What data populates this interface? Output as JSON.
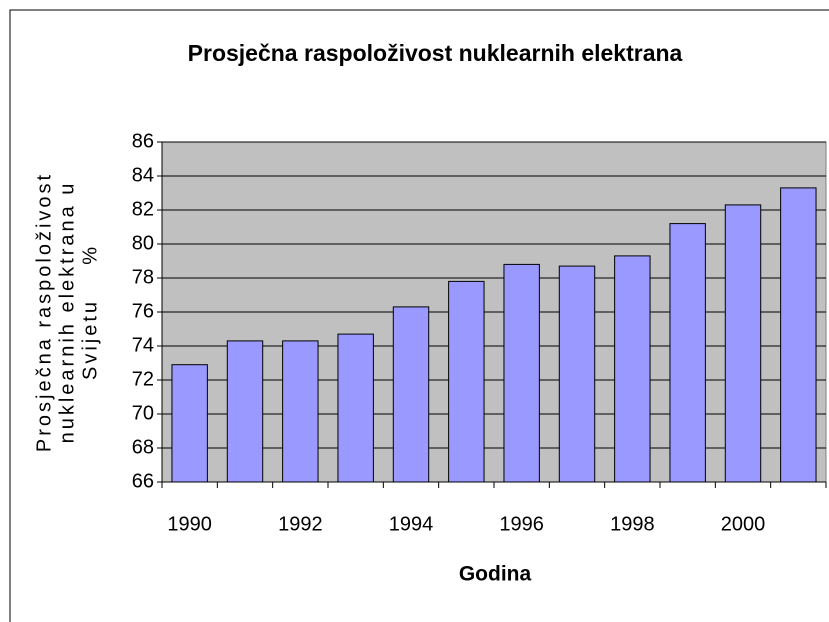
{
  "chart_data": {
    "type": "bar",
    "title": "Prosječna raspoloživost nuklearnih elektrana",
    "x_label": "Godina",
    "y_label": [
      "Prosječna raspoloživost",
      "nuklearnih elektrana u",
      "Svijetu    %"
    ],
    "categories": [
      1990,
      null,
      1992,
      null,
      1994,
      null,
      1996,
      null,
      1998,
      null,
      2000,
      null
    ],
    "values": [
      72.9,
      74.3,
      74.3,
      74.7,
      76.3,
      77.8,
      78.8,
      78.7,
      79.3,
      81.2,
      82.3,
      83.3
    ],
    "color": "#9999ff",
    "ylim": [
      66,
      86
    ],
    "yticks": [
      66,
      68,
      70,
      72,
      74,
      76,
      78,
      80,
      82,
      84,
      86
    ],
    "grid": true
  }
}
